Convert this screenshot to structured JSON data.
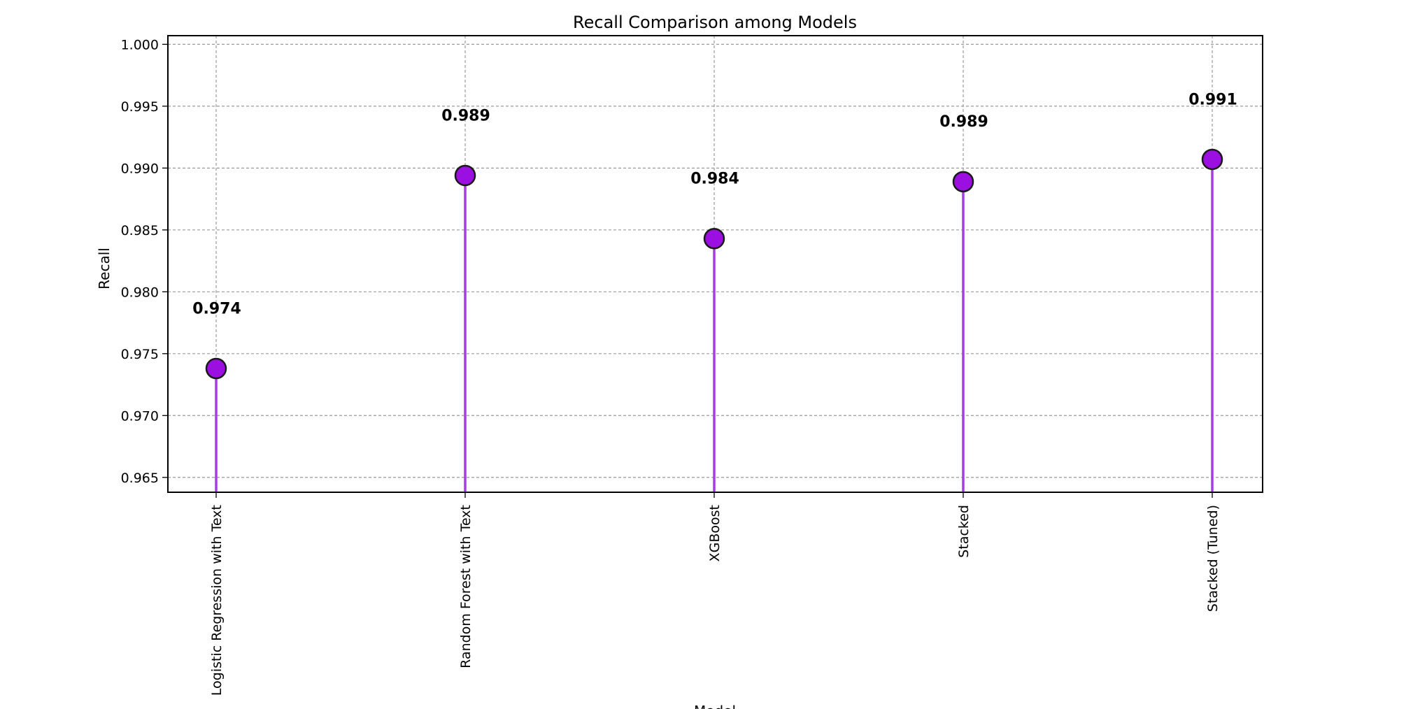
{
  "chart_data": {
    "type": "lollipop",
    "title": "Recall Comparison among Models",
    "xlabel": "Model",
    "ylabel": "Recall",
    "categories": [
      "Logistic Regression with Text",
      "Random Forest with Text",
      "XGBoost",
      "Stacked",
      "Stacked (Tuned)"
    ],
    "values": [
      0.9738,
      0.9894,
      0.9843,
      0.9889,
      0.9907
    ],
    "value_labels": [
      "0.974",
      "0.989",
      "0.984",
      "0.989",
      "0.991"
    ],
    "ylim": [
      0.9638,
      1.0007
    ],
    "yticks": [
      0.965,
      0.97,
      0.975,
      0.98,
      0.985,
      0.99,
      0.995,
      1.0
    ],
    "ytick_labels": [
      "0.965",
      "0.970",
      "0.975",
      "0.980",
      "0.985",
      "0.990",
      "0.995",
      "1.000"
    ],
    "grid": true,
    "colors": {
      "stem": "#a63de0",
      "marker_fill": "#9b0fe0",
      "marker_edge": "#1a1a1a"
    }
  }
}
